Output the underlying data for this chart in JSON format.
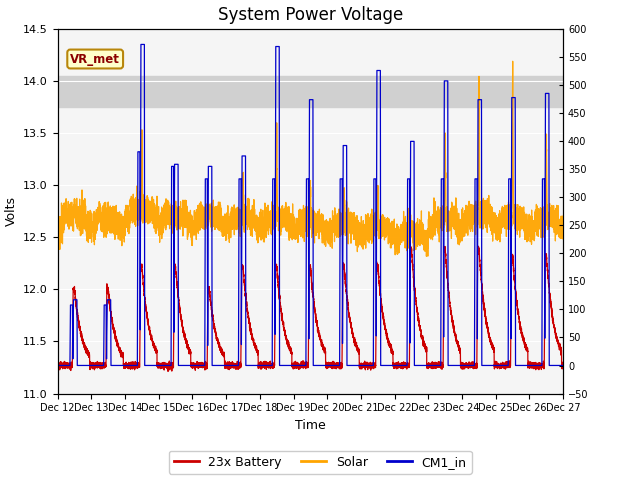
{
  "title": "System Power Voltage",
  "xlabel": "Time",
  "ylabel_left": "Volts",
  "ylim_left": [
    11.0,
    14.5
  ],
  "ylim_right": [
    -50,
    600
  ],
  "xlim": [
    0,
    15
  ],
  "x_tick_labels": [
    "Dec 12",
    "Dec 13",
    "Dec 14",
    "Dec 15",
    "Dec 16",
    "Dec 17",
    "Dec 18",
    "Dec 19",
    "Dec 20",
    "Dec 21",
    "Dec 22",
    "Dec 23",
    "Dec 24",
    "Dec 25",
    "Dec 26",
    "Dec 27"
  ],
  "shade_band": [
    13.75,
    14.05
  ],
  "shade_band_color": "#d0d0d0",
  "battery_color": "#cc0000",
  "solar_color": "#ffa500",
  "cm1_color": "#0000cc",
  "vr_met_label": "VR_met",
  "legend_labels": [
    "23x Battery",
    "Solar",
    "CM1_in"
  ],
  "title_fontsize": 12,
  "axis_fontsize": 9,
  "baseline": 11.27,
  "cm1_peaks": [
    11.9,
    11.9,
    14.35,
    13.2,
    13.18,
    13.28,
    14.33,
    13.82,
    13.38,
    14.1,
    13.42,
    14.0,
    13.82,
    13.84,
    13.88
  ],
  "cm1_peaks2": [
    11.85,
    11.85,
    13.32,
    13.18,
    13.06,
    13.06,
    13.06,
    13.06,
    13.06,
    13.06,
    13.06,
    13.06,
    13.06,
    13.06,
    13.06
  ],
  "battery_peaks": [
    12.0,
    12.0,
    12.22,
    12.22,
    12.0,
    12.22,
    12.22,
    12.22,
    12.22,
    12.22,
    12.38,
    12.38,
    12.38,
    12.32,
    12.32
  ],
  "solar_spikes_r": [
    290,
    285,
    430,
    280,
    290,
    350,
    430,
    330,
    330,
    330,
    260,
    420,
    540,
    560,
    420
  ],
  "solar_baseline_r": [
    250,
    245,
    265,
    255,
    255,
    255,
    255,
    250,
    248,
    245,
    235,
    260,
    270,
    268,
    265
  ],
  "right_ymin": -50,
  "right_ymax": 600,
  "left_ymin": 11.0,
  "left_ymax": 14.5
}
